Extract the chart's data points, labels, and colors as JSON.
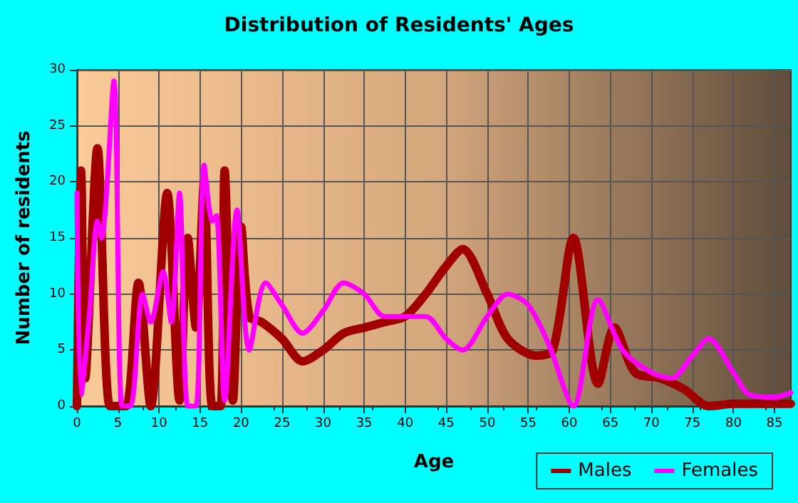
{
  "chart_data": {
    "type": "line",
    "title": "Distribution of Residents' Ages",
    "xlabel": "Age",
    "ylabel": "Number of residents",
    "xlim": [
      0,
      87
    ],
    "xticks": [
      0,
      5,
      10,
      15,
      20,
      25,
      30,
      35,
      40,
      45,
      50,
      55,
      60,
      65,
      70,
      75,
      80,
      85
    ],
    "ylim": [
      0,
      30
    ],
    "yticks": [
      0,
      5,
      10,
      15,
      20,
      25,
      30
    ],
    "grid": true,
    "legend": "bottom right",
    "marker": "none",
    "line_style": "solid",
    "series": [
      {
        "name": "Males",
        "color": "#a00000",
        "x": [
          0,
          0.5,
          1,
          2.5,
          4,
          5,
          6,
          7.5,
          9,
          11,
          12.5,
          13.5,
          14.5,
          15.5,
          16.5,
          17.5,
          18,
          19,
          20,
          21,
          22.5,
          25,
          27.5,
          30,
          32.5,
          35,
          37.5,
          40,
          42.5,
          45,
          47,
          50,
          52.5,
          56,
          58,
          60.5,
          63.5,
          65.5,
          68,
          71,
          74,
          77,
          80,
          87
        ],
        "values": [
          0,
          21,
          2.5,
          23,
          0,
          0,
          0,
          11,
          0,
          19,
          0.5,
          15,
          7,
          20,
          0,
          0,
          21,
          0.5,
          16,
          8,
          7.5,
          6,
          4,
          5,
          6.5,
          7,
          7.5,
          8,
          10,
          12.5,
          14,
          10,
          6,
          4.5,
          5,
          15,
          2,
          7,
          3,
          2.5,
          1.5,
          0,
          0.2,
          0.2
        ]
      },
      {
        "name": "Females",
        "color": "#ff00ff",
        "x": [
          0,
          0.5,
          1.5,
          2.5,
          3,
          4.5,
          5.5,
          6.5,
          8,
          9,
          10.5,
          11.5,
          12.5,
          13.5,
          14.5,
          15.5,
          16.5,
          17,
          18,
          19.5,
          21,
          23,
          25,
          27.5,
          30,
          32.5,
          35,
          37.5,
          40,
          42.5,
          45,
          47,
          50,
          52.5,
          55,
          57.5,
          60.5,
          63.5,
          66.5,
          70,
          72.5,
          75,
          77,
          80,
          82,
          85,
          87
        ],
        "values": [
          19,
          1,
          8,
          16.5,
          15,
          29,
          0,
          0,
          10,
          7.5,
          12,
          7.5,
          19,
          0,
          0,
          21.5,
          16.5,
          17,
          0.5,
          17.5,
          5,
          11,
          9,
          6.5,
          8.5,
          11,
          10,
          8,
          8,
          8,
          6,
          5,
          8,
          10,
          9,
          5.5,
          0,
          9.5,
          5,
          3,
          2.5,
          4.5,
          6,
          3,
          1,
          0.8,
          1.2
        ]
      }
    ]
  }
}
